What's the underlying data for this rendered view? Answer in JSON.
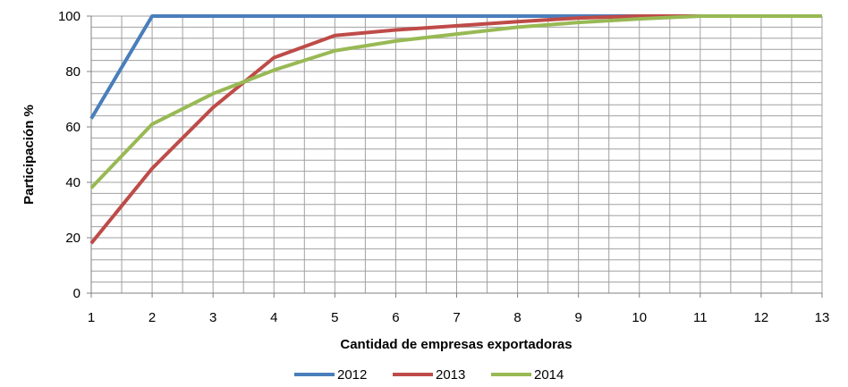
{
  "chart_data": {
    "type": "line",
    "title": "",
    "xlabel": "Cantidad de empresas exportadoras",
    "ylabel": "Participación %",
    "x": [
      1,
      2,
      3,
      4,
      5,
      6,
      7,
      8,
      9,
      10,
      11,
      12,
      13
    ],
    "xlim": [
      1,
      13
    ],
    "ylim": [
      0,
      100
    ],
    "y_ticks": [
      0,
      20,
      40,
      60,
      80,
      100
    ],
    "y_minor_step": 4,
    "grid": true,
    "legend": "bottom",
    "series": [
      {
        "name": "2012",
        "color": "#4a7ebb",
        "values": [
          63,
          100,
          100,
          100,
          100,
          100,
          100,
          100,
          100,
          100,
          100,
          100,
          100
        ]
      },
      {
        "name": "2013",
        "color": "#be4b48",
        "values": [
          18,
          45,
          67,
          85,
          93,
          95,
          96.5,
          98,
          99.3,
          100,
          100,
          100,
          100
        ]
      },
      {
        "name": "2014",
        "color": "#98b954",
        "values": [
          38,
          61,
          72,
          80.5,
          87.5,
          91,
          93.5,
          96,
          97.7,
          99,
          100,
          100,
          100
        ]
      }
    ]
  }
}
